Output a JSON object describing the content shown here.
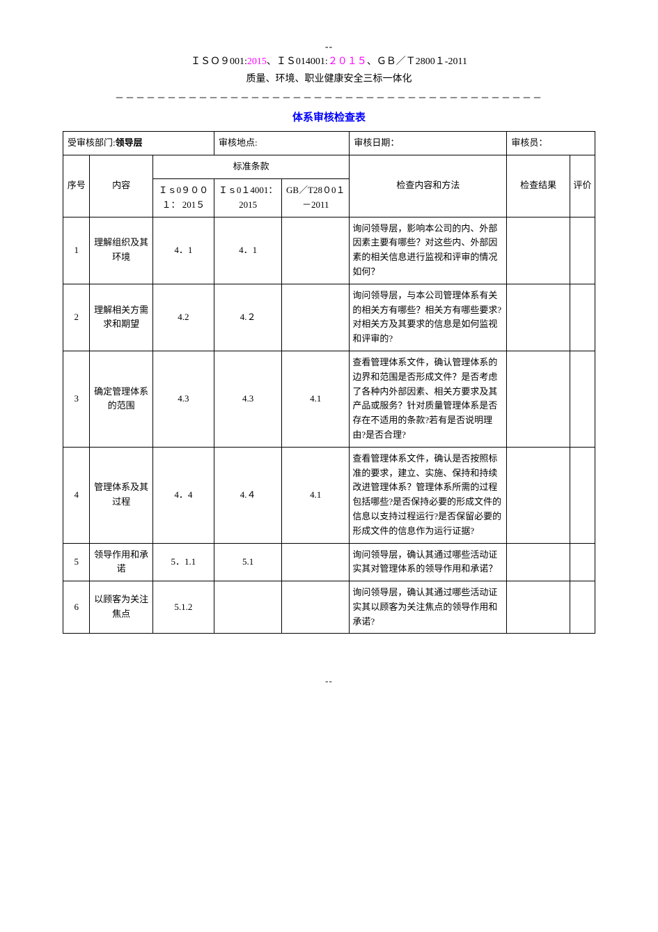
{
  "header": {
    "dash_top": "--",
    "line1_parts": {
      "iso9001": "ＩＳＯ９001:",
      "year1": "2015",
      "sep1": "、",
      "iso14001": "ＩＳ014001:",
      "year2": "２０１５",
      "sep2": "、",
      "gbt": "ＧＢ／Ｔ2800１-2011"
    },
    "line2": "质量、环境、职业健康安全三标一体化",
    "divider": "－－－－－－－－－－－－－－－－－－－－－－－－－－－－－－－－－－－－－－－－－",
    "title": "体系审核检查表"
  },
  "info": {
    "dept_label": "受审核部门:",
    "dept_value": "领导层",
    "location_label": "审核地点:",
    "date_label": "审核日期：",
    "auditor_label": "审核员："
  },
  "columns": {
    "seq": "序号",
    "content": "内容",
    "std_header": "标准条款",
    "std1": "Ｉｓ0９００１：  201５",
    "std2": "Ｉｓ0１4001：2015",
    "std3": "GB／T28０0１－2011",
    "method": "检查内容和方法",
    "result": "检查结果",
    "eval": "评价"
  },
  "rows": [
    {
      "seq": "1",
      "content": "理解组织及其环境",
      "std1": "4．1",
      "std2": "4．1",
      "std3": "",
      "method": "询问领导层，影响本公司的内、外部因素主要有哪些？对这些内、外部因素的相关信息进行监视和评审的情况如何？",
      "result": "",
      "eval": ""
    },
    {
      "seq": "2",
      "content": "理解相关方需求和期望",
      "std1": "4.2",
      "std2": "4.２",
      "std3": "",
      "method": "询问领导层，与本公司管理体系有关的相关方有哪些？相关方有哪些要求?对相关方及其要求的信息是如何监视和评审的?",
      "result": "",
      "eval": ""
    },
    {
      "seq": "3",
      "content": "确定管理体系的范围",
      "std1": "4.3",
      "std2": "4.3",
      "std3": "4.1",
      "method": "查看管理体系文件，确认管理体系的边界和范围是否形成文件？是否考虑了各种内外部因素、相关方要求及其产品或服务？针对质量管理体系是否存在不适用的条款?若有是否说明理由?是否合理?",
      "result": "",
      "eval": ""
    },
    {
      "seq": "4",
      "content": "管理体系及其过程",
      "std1": "4．4",
      "std2": "4.４",
      "std3": "4.1",
      "method": "查看管理体系文件，确认是否按照标准的要求，建立、实施、保持和持续改进管理体系？管理体系所需的过程包括哪些?是否保持必要的形成文件的信息以支持过程运行?是否保留必要的形成文件的信息作为运行证据?",
      "result": "",
      "eval": ""
    },
    {
      "seq": "5",
      "content": "领导作用和承诺",
      "std1": "5．1.1",
      "std2": "5.1",
      "std3": "",
      "method": "询问领导层，确认其通过哪些活动证实其对管理体系的领导作用和承诺？",
      "result": "",
      "eval": ""
    },
    {
      "seq": "6",
      "content": "以顾客为关注焦点",
      "std1": "5.1.2",
      "std2": "",
      "std3": "",
      "method": "询问领导层，确认其通过哪些活动证实其以顾客为关注焦点的领导作用和承诺?",
      "result": "",
      "eval": ""
    }
  ],
  "footer": {
    "dash_bottom": "--"
  },
  "colors": {
    "text": "#000000",
    "accent_red": "#ff00ff",
    "title_blue": "#0000ff",
    "background": "#ffffff",
    "border": "#000000"
  },
  "typography": {
    "base_fontsize": 14,
    "table_fontsize": 13,
    "title_fontsize": 15,
    "font_family": "SimSun"
  }
}
